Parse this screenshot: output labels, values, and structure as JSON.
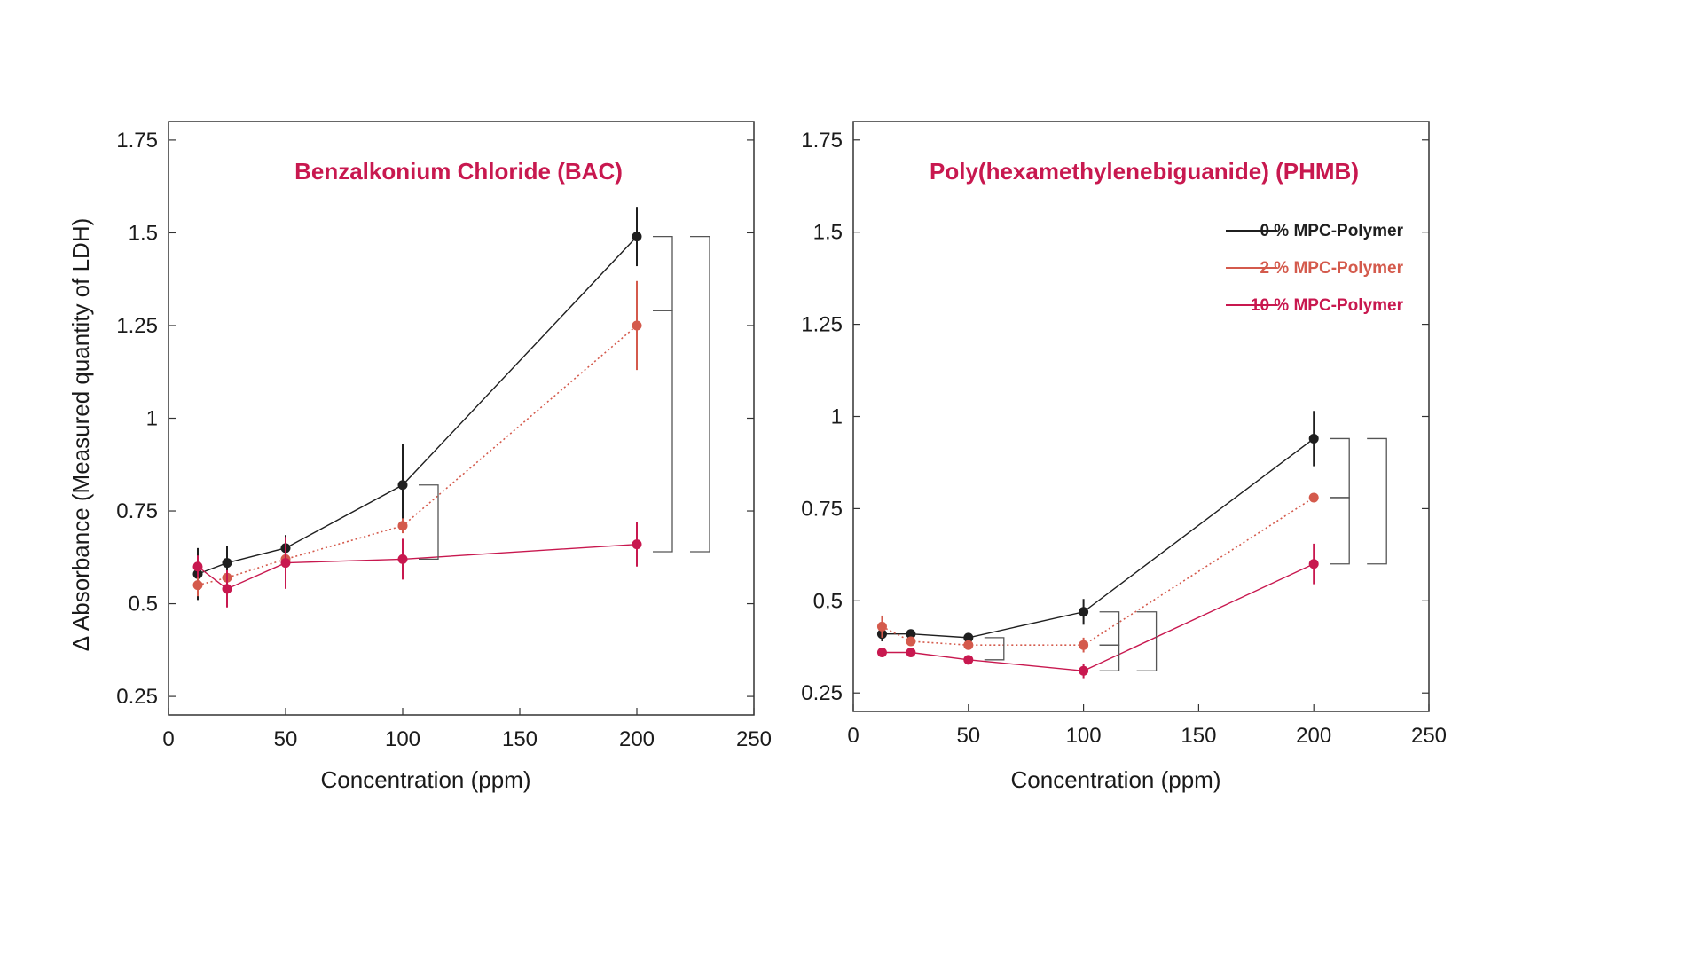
{
  "colors": {
    "series_0": "#1f1f1f",
    "series_2": "#d45a4c",
    "series_10": "#c8184f",
    "title": "#c8184f",
    "legend_0": "#1f1f1f",
    "legend_2": "#d45a4c",
    "legend_10": "#c8184f",
    "bracket": "#555555"
  },
  "chart_data": [
    {
      "type": "line",
      "title": "Benzalkonium Chloride (BAC)",
      "xlabel": "Concentration (ppm)",
      "ylabel": "Δ Absorbance (Measured quantity of LDH)",
      "xlim": [
        0,
        250
      ],
      "ylim": [
        0.2,
        1.8
      ],
      "xticks": [
        0,
        50,
        100,
        150,
        200,
        250
      ],
      "xtick_labels": [
        "0",
        "50",
        "100",
        "150",
        "200",
        "250"
      ],
      "yticks": [
        0.25,
        0.5,
        0.75,
        1,
        1.25,
        1.5,
        1.75
      ],
      "ytick_labels": [
        "0.25",
        "0.5",
        "0.75",
        "1",
        "1.25",
        "1.5",
        "1.75"
      ],
      "grid": false,
      "legend": false,
      "x": [
        12.5,
        25,
        50,
        100,
        200
      ],
      "series": [
        {
          "name": "0 % MPC-Polymer",
          "style": "solid",
          "y": [
            0.58,
            0.61,
            0.65,
            0.82,
            1.49
          ],
          "err": [
            0.07,
            0.045,
            0.035,
            0.11,
            0.08
          ]
        },
        {
          "name": "2 % MPC-Polymer",
          "style": "dotted",
          "y": [
            0.55,
            0.57,
            0.62,
            0.71,
            1.25
          ],
          "err": [
            0.03,
            0.02,
            0.02,
            0.02,
            0.12
          ]
        },
        {
          "name": "10 % MPC-Polymer",
          "style": "solid",
          "y": [
            0.6,
            0.54,
            0.61,
            0.62,
            0.66
          ],
          "err": [
            0.03,
            0.05,
            0.07,
            0.055,
            0.06
          ]
        }
      ],
      "brackets": [
        {
          "x": 100,
          "y1": 0.82,
          "y2": 0.62,
          "level": 0
        },
        {
          "x": 200,
          "y1": 1.49,
          "y2": 1.29,
          "level": 0
        },
        {
          "x": 200,
          "y1": 1.29,
          "y2": 0.64,
          "level": 0
        },
        {
          "x": 200,
          "y1": 1.49,
          "y2": 0.64,
          "level": 1
        }
      ]
    },
    {
      "type": "line",
      "title": "Poly(hexamethylenebiguanide) (PHMB)",
      "xlabel": "Concentration (ppm)",
      "ylabel": "",
      "xlim": [
        0,
        250
      ],
      "ylim": [
        0.2,
        1.8
      ],
      "xticks": [
        0,
        50,
        100,
        150,
        200,
        250
      ],
      "xtick_labels": [
        "0",
        "50",
        "100",
        "150",
        "200",
        "250"
      ],
      "yticks": [
        0.25,
        0.5,
        0.75,
        1,
        1.25,
        1.5,
        1.75
      ],
      "ytick_labels": [
        "0.25",
        "0.5",
        "0.75",
        "1",
        "1.25",
        "1.5",
        "1.75"
      ],
      "grid": false,
      "legend": "top-right",
      "x": [
        12.5,
        25,
        50,
        100,
        200
      ],
      "series": [
        {
          "name": "0 % MPC-Polymer",
          "style": "solid",
          "y": [
            0.41,
            0.41,
            0.4,
            0.47,
            0.94
          ],
          "err": [
            0.02,
            0.01,
            0.01,
            0.035,
            0.075
          ]
        },
        {
          "name": "2 % MPC-Polymer",
          "style": "dotted",
          "y": [
            0.43,
            0.39,
            0.38,
            0.38,
            0.78
          ],
          "err": [
            0.03,
            0.01,
            0.01,
            0.02,
            0.01
          ]
        },
        {
          "name": "10 % MPC-Polymer",
          "style": "solid",
          "y": [
            0.36,
            0.36,
            0.34,
            0.31,
            0.6
          ],
          "err": [
            0.01,
            0.01,
            0.01,
            0.02,
            0.055
          ]
        }
      ],
      "brackets": [
        {
          "x": 50,
          "y1": 0.4,
          "y2": 0.34,
          "level": 0
        },
        {
          "x": 100,
          "y1": 0.47,
          "y2": 0.38,
          "level": 0
        },
        {
          "x": 100,
          "y1": 0.38,
          "y2": 0.31,
          "level": 0
        },
        {
          "x": 100,
          "y1": 0.47,
          "y2": 0.31,
          "level": 1
        },
        {
          "x": 200,
          "y1": 0.94,
          "y2": 0.78,
          "level": 0
        },
        {
          "x": 200,
          "y1": 0.78,
          "y2": 0.6,
          "level": 0
        },
        {
          "x": 200,
          "y1": 0.94,
          "y2": 0.6,
          "level": 1
        }
      ]
    }
  ]
}
